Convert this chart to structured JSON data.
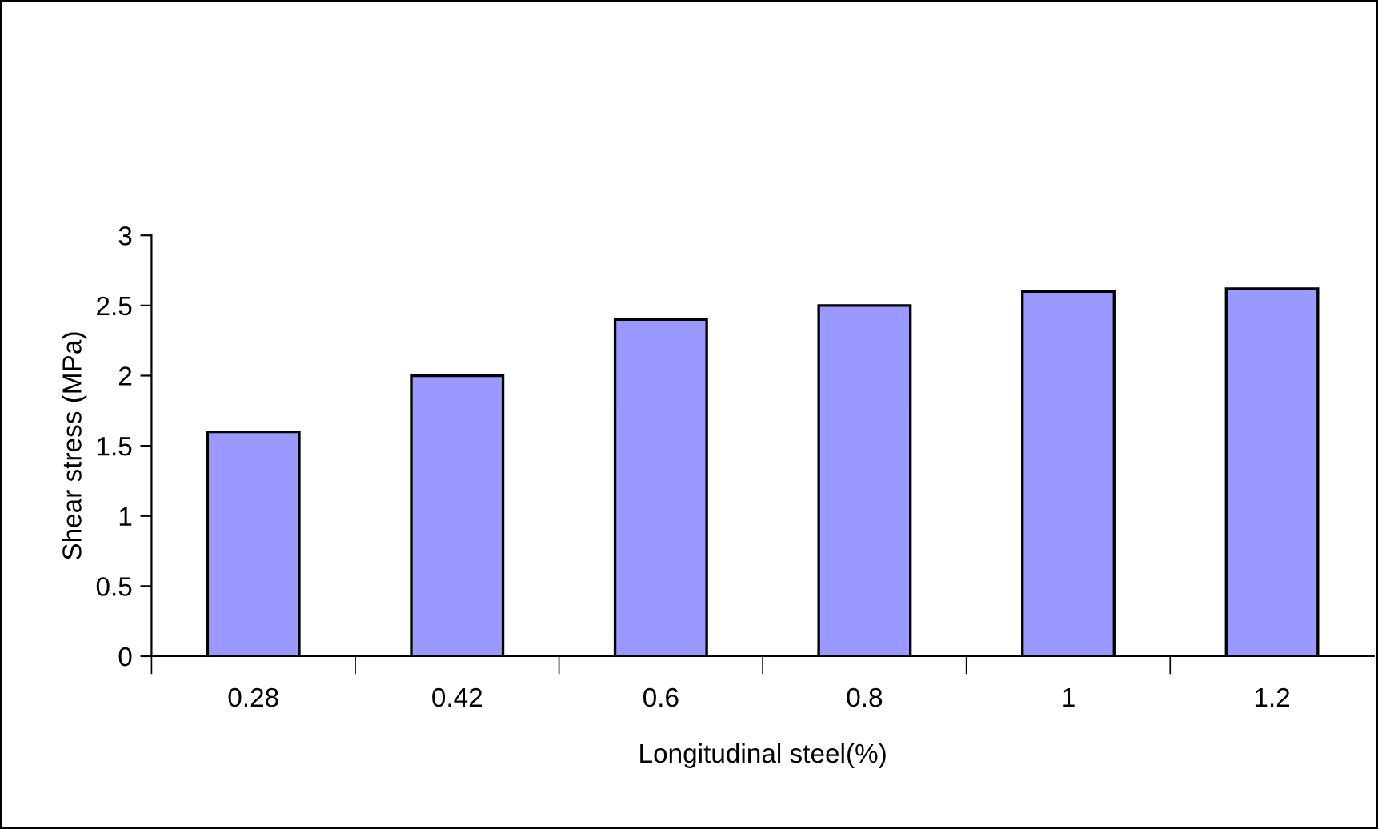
{
  "chart_data": {
    "type": "bar",
    "xlabel": "Longitudinal steel(%)",
    "ylabel": "Shear stress (MPa)",
    "categories": [
      "0.28",
      "0.42",
      "0.6",
      "0.8",
      "1",
      "1.2"
    ],
    "values": [
      1.6,
      2.0,
      2.4,
      2.5,
      2.6,
      2.62
    ],
    "color": "#9999ff",
    "ylim": [
      0,
      3
    ],
    "yticks": [
      0,
      0.5,
      1,
      1.5,
      2,
      2.5,
      3
    ],
    "grid": false,
    "legend": false
  }
}
